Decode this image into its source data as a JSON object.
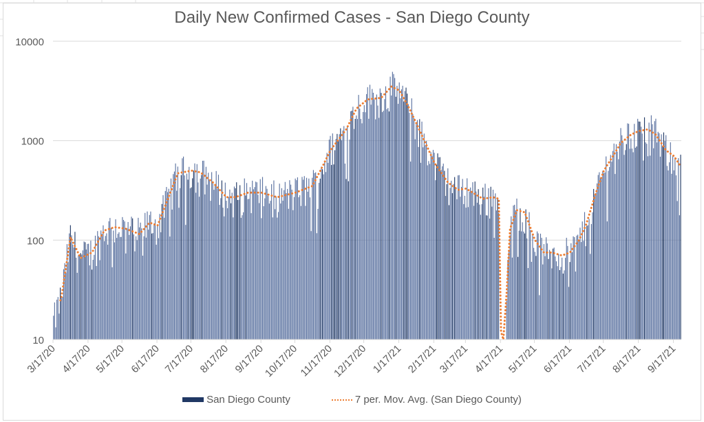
{
  "chart_data": {
    "type": "bar",
    "title": "Daily New Confirmed Cases - San Diego County",
    "xlabel": "",
    "ylabel": "",
    "yscale": "log",
    "ylim": [
      10,
      10000
    ],
    "yticks": [
      10,
      100,
      1000,
      10000
    ],
    "ytick_labels": [
      "10",
      "100",
      "1000",
      "10000"
    ],
    "grid": "horizontal",
    "legend_position": "bottom",
    "start_date": "3/17/20",
    "end_date": "9/23/21",
    "xtick_labels": [
      "3/17/20",
      "4/17/20",
      "5/17/20",
      "6/17/20",
      "7/17/20",
      "8/17/20",
      "9/17/20",
      "10/17/20",
      "11/17/20",
      "12/17/20",
      "1/17/21",
      "2/17/21",
      "3/17/21",
      "4/17/21",
      "5/17/21",
      "6/17/21",
      "7/17/21",
      "8/17/21",
      "9/17/21"
    ],
    "xtick_day_offsets": [
      0,
      31,
      61,
      92,
      122,
      153,
      184,
      214,
      245,
      275,
      306,
      337,
      365,
      396,
      426,
      457,
      487,
      518,
      549
    ],
    "series": [
      {
        "name": "San Diego County",
        "kind": "bar",
        "color": "#203864",
        "weekly_anchor_day_offsets": [
          0,
          7,
          15,
          24,
          34,
          45,
          54,
          64,
          76,
          85,
          92,
          100,
          110,
          122,
          130,
          141,
          153,
          161,
          172,
          184,
          198,
          214,
          229,
          238,
          245,
          259,
          268,
          278,
          290,
          299,
          306,
          314,
          321,
          330,
          337,
          349,
          358,
          365,
          380,
          389,
          394,
          396,
          398,
          401,
          404,
          410,
          417,
          426,
          434,
          441,
          450,
          457,
          465,
          471,
          480,
          487,
          495,
          502,
          511,
          518,
          526,
          533,
          542,
          549,
          555
        ],
        "weekly_anchor_values": [
          15,
          27,
          107,
          66,
          75,
          125,
          135,
          130,
          115,
          150,
          140,
          240,
          470,
          500,
          480,
          380,
          270,
          270,
          300,
          300,
          270,
          300,
          350,
          550,
          800,
          1300,
          2100,
          2600,
          2700,
          3500,
          3200,
          2200,
          1500,
          900,
          600,
          380,
          320,
          330,
          260,
          270,
          260,
          12,
          10,
          30,
          130,
          200,
          190,
          100,
          75,
          75,
          70,
          75,
          100,
          140,
          300,
          500,
          700,
          950,
          1150,
          1250,
          1300,
          1150,
          800,
          700,
          550
        ],
        "note": "Daily bar values fluctuate around the 7-day average (roughly ±40%), with notable peaks of ~4400 near 1/10/21 and ~1800 near 8/28/21."
      },
      {
        "name": "7 per. Mov. Avg. (San Diego County)",
        "kind": "line",
        "style": "dotted",
        "color": "#ed7d31"
      }
    ]
  },
  "legend": {
    "bar_label": "San Diego County",
    "line_label": "7 per. Mov. Avg. (San Diego County)"
  }
}
